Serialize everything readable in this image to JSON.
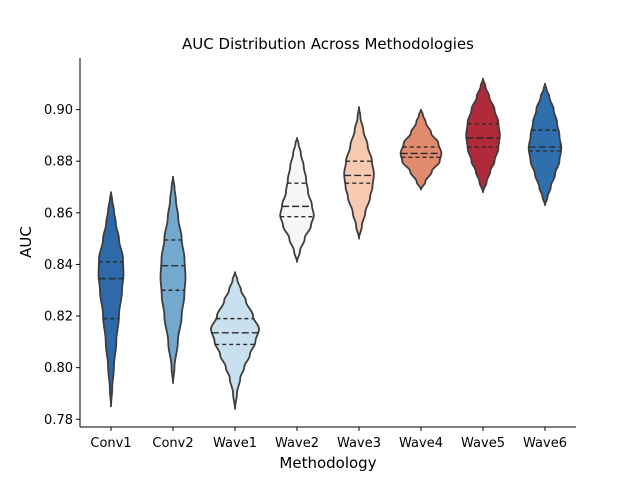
{
  "chart_data": {
    "type": "violin",
    "title": "AUC Distribution Across Methodologies",
    "xlabel": "Methodology",
    "ylabel": "AUC",
    "ylim": [
      0.777,
      0.92
    ],
    "yticks": [
      0.78,
      0.8,
      0.82,
      0.84,
      0.86,
      0.88,
      0.9
    ],
    "ytick_labels": [
      "0.78",
      "0.80",
      "0.82",
      "0.84",
      "0.86",
      "0.88",
      "0.90"
    ],
    "grid": false,
    "inner": "quartile",
    "categories": [
      "Conv1",
      "Conv2",
      "Wave1",
      "Wave2",
      "Wave3",
      "Wave4",
      "Wave5",
      "Wave6"
    ],
    "violins": [
      {
        "name": "Conv1",
        "color": "#2e6aa9",
        "q1": 0.819,
        "median": 0.8345,
        "q3": 0.841,
        "profile": [
          [
            0.785,
            0.0
          ],
          [
            0.792,
            0.05
          ],
          [
            0.8,
            0.12
          ],
          [
            0.81,
            0.22
          ],
          [
            0.82,
            0.33
          ],
          [
            0.83,
            0.46
          ],
          [
            0.836,
            0.52
          ],
          [
            0.842,
            0.5
          ],
          [
            0.85,
            0.33
          ],
          [
            0.856,
            0.2
          ],
          [
            0.861,
            0.12
          ],
          [
            0.865,
            0.05
          ],
          [
            0.868,
            0.0
          ]
        ]
      },
      {
        "name": "Conv2",
        "color": "#74a9cf",
        "q1": 0.83,
        "median": 0.8395,
        "q3": 0.8495,
        "profile": [
          [
            0.794,
            0.0
          ],
          [
            0.8,
            0.06
          ],
          [
            0.81,
            0.2
          ],
          [
            0.82,
            0.36
          ],
          [
            0.828,
            0.47
          ],
          [
            0.835,
            0.52
          ],
          [
            0.842,
            0.48
          ],
          [
            0.85,
            0.36
          ],
          [
            0.858,
            0.22
          ],
          [
            0.865,
            0.12
          ],
          [
            0.87,
            0.06
          ],
          [
            0.874,
            0.0
          ]
        ]
      },
      {
        "name": "Wave1",
        "color": "#c9e1ee",
        "q1": 0.809,
        "median": 0.8135,
        "q3": 0.819,
        "profile": [
          [
            0.784,
            0.0
          ],
          [
            0.79,
            0.08
          ],
          [
            0.796,
            0.22
          ],
          [
            0.8,
            0.38
          ],
          [
            0.805,
            0.62
          ],
          [
            0.81,
            0.85
          ],
          [
            0.815,
            1.0
          ],
          [
            0.82,
            0.75
          ],
          [
            0.826,
            0.45
          ],
          [
            0.83,
            0.25
          ],
          [
            0.834,
            0.1
          ],
          [
            0.837,
            0.0
          ]
        ]
      },
      {
        "name": "Wave2",
        "color": "#f6f6f6",
        "q1": 0.8585,
        "median": 0.8625,
        "q3": 0.8715,
        "profile": [
          [
            0.841,
            0.0
          ],
          [
            0.845,
            0.12
          ],
          [
            0.85,
            0.32
          ],
          [
            0.855,
            0.58
          ],
          [
            0.859,
            0.7
          ],
          [
            0.863,
            0.62
          ],
          [
            0.868,
            0.46
          ],
          [
            0.873,
            0.38
          ],
          [
            0.878,
            0.28
          ],
          [
            0.883,
            0.16
          ],
          [
            0.887,
            0.06
          ],
          [
            0.889,
            0.0
          ]
        ]
      },
      {
        "name": "Wave3",
        "color": "#f7c9b0",
        "q1": 0.8715,
        "median": 0.8745,
        "q3": 0.88,
        "profile": [
          [
            0.85,
            0.0
          ],
          [
            0.855,
            0.12
          ],
          [
            0.86,
            0.26
          ],
          [
            0.866,
            0.46
          ],
          [
            0.87,
            0.56
          ],
          [
            0.875,
            0.62
          ],
          [
            0.88,
            0.54
          ],
          [
            0.886,
            0.36
          ],
          [
            0.892,
            0.18
          ],
          [
            0.897,
            0.06
          ],
          [
            0.901,
            0.0
          ]
        ]
      },
      {
        "name": "Wave4",
        "color": "#e08b6e",
        "q1": 0.8815,
        "median": 0.883,
        "q3": 0.8855,
        "profile": [
          [
            0.869,
            0.0
          ],
          [
            0.872,
            0.18
          ],
          [
            0.876,
            0.45
          ],
          [
            0.88,
            0.78
          ],
          [
            0.883,
            0.85
          ],
          [
            0.887,
            0.72
          ],
          [
            0.891,
            0.42
          ],
          [
            0.895,
            0.2
          ],
          [
            0.898,
            0.08
          ],
          [
            0.9,
            0.0
          ]
        ]
      },
      {
        "name": "Wave5",
        "color": "#b02a3a",
        "q1": 0.8855,
        "median": 0.889,
        "q3": 0.8945,
        "profile": [
          [
            0.868,
            0.0
          ],
          [
            0.872,
            0.15
          ],
          [
            0.876,
            0.3
          ],
          [
            0.88,
            0.48
          ],
          [
            0.885,
            0.64
          ],
          [
            0.89,
            0.7
          ],
          [
            0.895,
            0.64
          ],
          [
            0.9,
            0.48
          ],
          [
            0.905,
            0.26
          ],
          [
            0.909,
            0.1
          ],
          [
            0.912,
            0.0
          ]
        ]
      },
      {
        "name": "Wave6",
        "color": "#2f6fae",
        "q1": 0.884,
        "median": 0.8855,
        "q3": 0.892,
        "profile": [
          [
            0.863,
            0.0
          ],
          [
            0.866,
            0.1
          ],
          [
            0.87,
            0.24
          ],
          [
            0.875,
            0.42
          ],
          [
            0.88,
            0.6
          ],
          [
            0.885,
            0.68
          ],
          [
            0.89,
            0.6
          ],
          [
            0.895,
            0.5
          ],
          [
            0.9,
            0.36
          ],
          [
            0.905,
            0.18
          ],
          [
            0.908,
            0.06
          ],
          [
            0.91,
            0.0
          ]
        ]
      }
    ]
  }
}
